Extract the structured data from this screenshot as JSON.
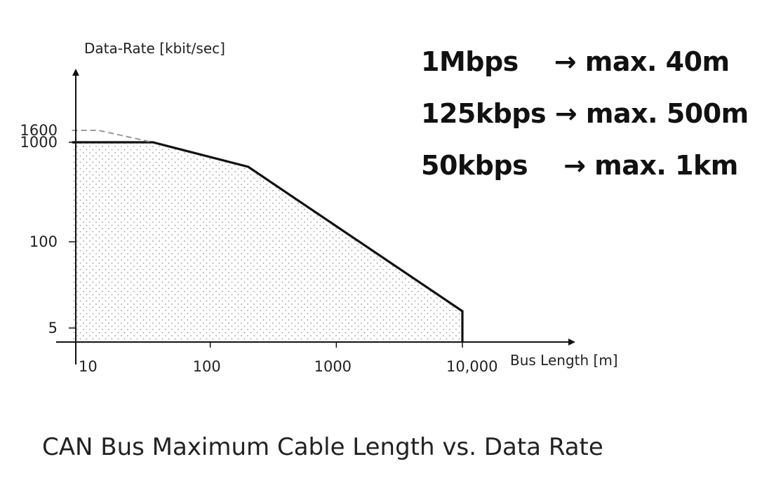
{
  "chart_data": {
    "type": "line",
    "ylabel": "Data-Rate [kbit/sec]",
    "xlabel": "Bus Length [m]",
    "x_scale": "log",
    "x_ticks": [
      {
        "value": 10,
        "label": "10"
      },
      {
        "value": 100,
        "label": "100"
      },
      {
        "value": 1000,
        "label": "1000"
      },
      {
        "value": 10000,
        "label": "10,000"
      }
    ],
    "y_ticks": [
      {
        "label": "5"
      },
      {
        "label": "100"
      },
      {
        "label": "1000"
      },
      {
        "label": "1600"
      }
    ],
    "series": [
      {
        "style": "solid",
        "shaded_area_below": true,
        "points": [
          {
            "x": 8,
            "y": "1000"
          },
          {
            "x": 35,
            "y": "1000"
          },
          {
            "x": 200,
            "y": "500"
          },
          {
            "x": 10000,
            "y": "10"
          },
          {
            "x": 10000,
            "y": "0"
          }
        ]
      },
      {
        "style": "dashed",
        "points": [
          {
            "x": 8,
            "y": "1600"
          },
          {
            "x": 13,
            "y": "1600"
          },
          {
            "x": 35,
            "y": "1000"
          }
        ]
      }
    ],
    "notes": [
      "1Mbps    → max. 40m",
      "125kbps → max. 500m",
      "50kbps    → max. 1km"
    ],
    "grid": false
  },
  "caption": "CAN Bus Maximum Cable Length vs. Data Rate"
}
